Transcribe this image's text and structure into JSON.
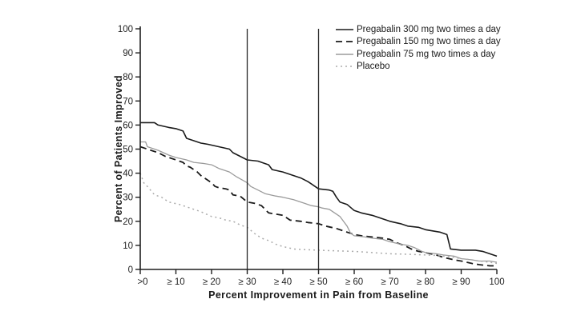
{
  "figure": {
    "background": "#ffffff",
    "axis_color": "#1f1f1f",
    "tick_label_color": "#1f1f1f"
  },
  "chart_data": {
    "type": "line",
    "title": "",
    "xlabel": "Percent Improvement in Pain from Baseline",
    "ylabel": "Percent of Patients Improved",
    "xlim": [
      0,
      100
    ],
    "ylim": [
      0,
      100
    ],
    "grid": false,
    "legend_position": "top-right",
    "x_tick_values": [
      0,
      10,
      20,
      30,
      40,
      50,
      60,
      70,
      80,
      90,
      100
    ],
    "x_tick_labels": [
      ">0",
      "≥ 10",
      "≥ 20",
      "≥ 30",
      "≥ 40",
      "≥ 50",
      "≥ 60",
      "≥ 70",
      "≥ 80",
      "≥ 90",
      "100"
    ],
    "y_tick_values": [
      0,
      10,
      20,
      30,
      40,
      50,
      60,
      70,
      80,
      90,
      100
    ],
    "y_tick_labels": [
      "0",
      "10",
      "20",
      "30",
      "40",
      "50",
      "60",
      "70",
      "80",
      "90",
      "100"
    ],
    "reference_lines_x": [
      30,
      50
    ],
    "reference_line_color": "#2a2a2a",
    "series": [
      {
        "name": "Pregabalin 300 mg two times a day",
        "style": "solid",
        "color": "#1a1a1a",
        "width": 1.6,
        "points": [
          [
            0,
            61
          ],
          [
            4,
            61
          ],
          [
            5,
            60
          ],
          [
            8,
            59
          ],
          [
            10,
            58.5
          ],
          [
            12,
            57.5
          ],
          [
            13,
            54.5
          ],
          [
            15,
            53.5
          ],
          [
            17,
            52.5
          ],
          [
            19,
            52
          ],
          [
            22,
            51
          ],
          [
            25,
            50
          ],
          [
            26,
            48.5
          ],
          [
            28,
            47
          ],
          [
            30,
            45.5
          ],
          [
            33,
            45
          ],
          [
            35,
            44
          ],
          [
            36,
            43.5
          ],
          [
            37,
            41.5
          ],
          [
            40,
            40.5
          ],
          [
            42,
            39.5
          ],
          [
            45,
            38
          ],
          [
            47,
            36.5
          ],
          [
            48,
            35.5
          ],
          [
            50,
            33.5
          ],
          [
            53,
            33
          ],
          [
            54,
            32.5
          ],
          [
            55,
            30
          ],
          [
            56,
            28
          ],
          [
            58,
            27
          ],
          [
            60,
            24.5
          ],
          [
            62,
            23.5
          ],
          [
            65,
            22.5
          ],
          [
            67,
            21.5
          ],
          [
            70,
            20
          ],
          [
            73,
            19
          ],
          [
            75,
            18
          ],
          [
            78,
            17.5
          ],
          [
            80,
            16.5
          ],
          [
            82,
            16
          ],
          [
            84,
            15.5
          ],
          [
            86,
            14.5
          ],
          [
            87,
            8.5
          ],
          [
            90,
            8
          ],
          [
            94,
            8
          ],
          [
            96,
            7.5
          ],
          [
            98,
            6.5
          ],
          [
            100,
            5.5
          ]
        ]
      },
      {
        "name": "Pregabalin 150 mg two times a day",
        "style": "dashed",
        "color": "#1a1a1a",
        "width": 1.8,
        "points": [
          [
            0,
            51
          ],
          [
            3,
            49.5
          ],
          [
            5,
            48.5
          ],
          [
            7,
            47
          ],
          [
            10,
            45.5
          ],
          [
            12,
            44.5
          ],
          [
            13,
            43
          ],
          [
            14,
            42.5
          ],
          [
            16,
            40.5
          ],
          [
            17,
            39
          ],
          [
            18,
            38
          ],
          [
            20,
            36
          ],
          [
            21,
            34.5
          ],
          [
            22,
            34
          ],
          [
            24,
            33.5
          ],
          [
            25,
            33
          ],
          [
            26,
            31
          ],
          [
            28,
            30.5
          ],
          [
            30,
            28
          ],
          [
            32,
            27.5
          ],
          [
            34,
            26.5
          ],
          [
            36,
            23.5
          ],
          [
            38,
            23
          ],
          [
            40,
            22.5
          ],
          [
            42,
            20.5
          ],
          [
            45,
            20
          ],
          [
            47,
            19.5
          ],
          [
            50,
            19
          ],
          [
            52,
            18
          ],
          [
            55,
            17
          ],
          [
            57,
            16
          ],
          [
            60,
            14.5
          ],
          [
            62,
            14
          ],
          [
            65,
            13.5
          ],
          [
            68,
            13
          ],
          [
            70,
            12.5
          ],
          [
            72,
            11
          ],
          [
            74,
            10
          ],
          [
            76,
            8.5
          ],
          [
            78,
            7.5
          ],
          [
            80,
            7
          ],
          [
            83,
            6
          ],
          [
            85,
            5
          ],
          [
            88,
            4
          ],
          [
            90,
            3.5
          ],
          [
            93,
            2.5
          ],
          [
            95,
            2
          ],
          [
            98,
            1.5
          ],
          [
            100,
            1.5
          ]
        ]
      },
      {
        "name": "Pregabalin 75 mg two times a day",
        "style": "solid",
        "color": "#9b9b9b",
        "width": 1.3,
        "points": [
          [
            0,
            53
          ],
          [
            1.5,
            53
          ],
          [
            2,
            51
          ],
          [
            5,
            49.5
          ],
          [
            8,
            47.5
          ],
          [
            10,
            46.5
          ],
          [
            13,
            45.5
          ],
          [
            15,
            44.5
          ],
          [
            18,
            44
          ],
          [
            20,
            43.5
          ],
          [
            22,
            42
          ],
          [
            25,
            40.5
          ],
          [
            27,
            38.5
          ],
          [
            30,
            36
          ],
          [
            31,
            34.5
          ],
          [
            33,
            33
          ],
          [
            35,
            31.5
          ],
          [
            38,
            30.5
          ],
          [
            40,
            30
          ],
          [
            43,
            29
          ],
          [
            45,
            28
          ],
          [
            48,
            26.5
          ],
          [
            50,
            26
          ],
          [
            51,
            25.5
          ],
          [
            53,
            25
          ],
          [
            55,
            23
          ],
          [
            56,
            22
          ],
          [
            57,
            20
          ],
          [
            58,
            18
          ],
          [
            59,
            15
          ],
          [
            60,
            14
          ],
          [
            63,
            13.5
          ],
          [
            65,
            13
          ],
          [
            68,
            12.5
          ],
          [
            70,
            11.5
          ],
          [
            73,
            10.5
          ],
          [
            75,
            10
          ],
          [
            77,
            9
          ],
          [
            79,
            7.5
          ],
          [
            80,
            7
          ],
          [
            83,
            6.5
          ],
          [
            85,
            6
          ],
          [
            88,
            5.5
          ],
          [
            90,
            4.5
          ],
          [
            93,
            4
          ],
          [
            95,
            3.5
          ],
          [
            98,
            3.5
          ],
          [
            100,
            3
          ]
        ]
      },
      {
        "name": "Placebo",
        "style": "dotted",
        "color": "#ababab",
        "width": 1.5,
        "points": [
          [
            0,
            40
          ],
          [
            1,
            36
          ],
          [
            2,
            34.5
          ],
          [
            4,
            31
          ],
          [
            6,
            30
          ],
          [
            8,
            28
          ],
          [
            11,
            27
          ],
          [
            13,
            26
          ],
          [
            15,
            25
          ],
          [
            17,
            24
          ],
          [
            20,
            22
          ],
          [
            22,
            21.5
          ],
          [
            24,
            20.5
          ],
          [
            26,
            20
          ],
          [
            28,
            18.5
          ],
          [
            30,
            17.5
          ],
          [
            32,
            15
          ],
          [
            34,
            13
          ],
          [
            36,
            12
          ],
          [
            38,
            10.5
          ],
          [
            40,
            9.5
          ],
          [
            43,
            8.5
          ],
          [
            45,
            8.3
          ],
          [
            50,
            8
          ],
          [
            55,
            7.7
          ],
          [
            60,
            7.5
          ],
          [
            65,
            7
          ],
          [
            70,
            6.5
          ],
          [
            75,
            6.3
          ],
          [
            80,
            6
          ],
          [
            83,
            5.8
          ],
          [
            85,
            5.5
          ],
          [
            88,
            5
          ],
          [
            90,
            4.5
          ],
          [
            93,
            4
          ],
          [
            95,
            3.5
          ],
          [
            98,
            3
          ],
          [
            100,
            2.5
          ]
        ]
      }
    ]
  }
}
